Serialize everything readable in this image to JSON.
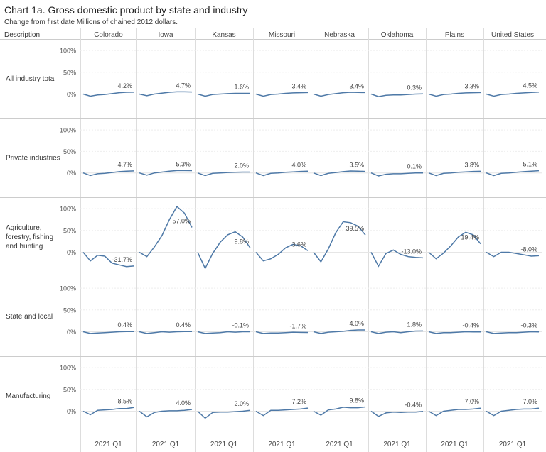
{
  "title": "Chart 1a. Gross domestic product by state and industry",
  "subtitle": "Change from first date Millions of chained 2012 dollars.",
  "header": {
    "description_label": "Description"
  },
  "chart_data": {
    "type": "line",
    "title": "Chart 1a. Gross domestic product by state and industry",
    "columns": [
      "Colorado",
      "Iowa",
      "Kansas",
      "Missouri",
      "Nebraska",
      "Oklahoma",
      "Plains",
      "United States"
    ],
    "x_tick_label": "2021 Q1",
    "y_ticks": [
      "100%",
      "50%",
      "0%"
    ],
    "ylim": [
      -40,
      110
    ],
    "grid": true,
    "line_color": "#4e79a7",
    "rows": [
      {
        "label": "All industry total",
        "series": [
          {
            "state": "Colorado",
            "values": [
              0,
              -5,
              -2,
              -1,
              1,
              3,
              4,
              4.2
            ],
            "last_label": "4.2%"
          },
          {
            "state": "Iowa",
            "values": [
              0,
              -4,
              0,
              2,
              4,
              5,
              5,
              4.7
            ],
            "last_label": "4.7%"
          },
          {
            "state": "Kansas",
            "values": [
              0,
              -5,
              -1,
              0,
              1,
              1.5,
              1.6,
              1.6
            ],
            "last_label": "1.6%"
          },
          {
            "state": "Missouri",
            "values": [
              0,
              -5,
              -1,
              0,
              1.5,
              2.5,
              3,
              3.4
            ],
            "last_label": "3.4%"
          },
          {
            "state": "Nebraska",
            "values": [
              0,
              -5,
              -1,
              1,
              3,
              4,
              3.5,
              3.4
            ],
            "last_label": "3.4%"
          },
          {
            "state": "Oklahoma",
            "values": [
              0,
              -6,
              -3,
              -2,
              -2,
              -1,
              0,
              0.3
            ],
            "last_label": "0.3%"
          },
          {
            "state": "Plains",
            "values": [
              0,
              -5,
              -1,
              0,
              1.5,
              2.5,
              3,
              3.3
            ],
            "last_label": "3.3%"
          },
          {
            "state": "United States",
            "values": [
              0,
              -5,
              -1,
              0,
              1.5,
              2.5,
              3.5,
              4.5
            ],
            "last_label": "4.5%"
          }
        ]
      },
      {
        "label": "Private industries",
        "series": [
          {
            "state": "Colorado",
            "values": [
              0,
              -6,
              -2,
              -1,
              1,
              3,
              4,
              4.7
            ],
            "last_label": "4.7%"
          },
          {
            "state": "Iowa",
            "values": [
              0,
              -5,
              0,
              2,
              4,
              5.5,
              5.5,
              5.3
            ],
            "last_label": "5.3%"
          },
          {
            "state": "Kansas",
            "values": [
              0,
              -6,
              -1,
              0,
              1,
              1.5,
              2,
              2.0
            ],
            "last_label": "2.0%"
          },
          {
            "state": "Missouri",
            "values": [
              0,
              -6,
              -1,
              0,
              1.5,
              2.5,
              3.5,
              4.0
            ],
            "last_label": "4.0%"
          },
          {
            "state": "Nebraska",
            "values": [
              0,
              -6,
              -1,
              1,
              3,
              4.5,
              4,
              3.5
            ],
            "last_label": "3.5%"
          },
          {
            "state": "Oklahoma",
            "values": [
              0,
              -7,
              -3,
              -2,
              -2,
              -1,
              0,
              0.1
            ],
            "last_label": "0.1%"
          },
          {
            "state": "Plains",
            "values": [
              0,
              -6,
              -1,
              0,
              1.5,
              2.5,
              3.5,
              3.8
            ],
            "last_label": "3.8%"
          },
          {
            "state": "United States",
            "values": [
              0,
              -6,
              -1,
              0,
              1.5,
              3,
              4,
              5.1
            ],
            "last_label": "5.1%"
          }
        ]
      },
      {
        "label": "Agriculture, forestry, fishing and hunting",
        "series": [
          {
            "state": "Colorado",
            "values": [
              0,
              -20,
              -7,
              -9,
              -25,
              -29,
              -33,
              -31.7
            ],
            "last_label": "-31.7%"
          },
          {
            "state": "Iowa",
            "values": [
              0,
              -10,
              12,
              38,
              75,
              105,
              90,
              57.0
            ],
            "last_label": "57.0%"
          },
          {
            "state": "Kansas",
            "values": [
              0,
              -37,
              -3,
              23,
              40,
              47,
              35,
              9.8
            ],
            "last_label": "9.8%"
          },
          {
            "state": "Missouri",
            "values": [
              0,
              -20,
              -15,
              -5,
              10,
              18,
              15,
              3.6
            ],
            "last_label": "3.6%"
          },
          {
            "state": "Nebraska",
            "values": [
              0,
              -22,
              8,
              45,
              70,
              68,
              60,
              39.5
            ],
            "last_label": "39.5%"
          },
          {
            "state": "Oklahoma",
            "values": [
              0,
              -32,
              -3,
              5,
              -5,
              -10,
              -12,
              -13.0
            ],
            "last_label": "-13.0%"
          },
          {
            "state": "Plains",
            "values": [
              0,
              -15,
              -2,
              15,
              35,
              46,
              40,
              19.4
            ],
            "last_label": "19.4%"
          },
          {
            "state": "United States",
            "values": [
              0,
              -10,
              0,
              0,
              -3,
              -6,
              -9,
              -8.0
            ],
            "last_label": "-8.0%"
          }
        ]
      },
      {
        "label": "State and local",
        "series": [
          {
            "state": "Colorado",
            "values": [
              0,
              -4,
              -3,
              -2,
              -1,
              0,
              0.5,
              0.4
            ],
            "last_label": "0.4%"
          },
          {
            "state": "Iowa",
            "values": [
              0,
              -4,
              -2,
              0,
              -1,
              0,
              0.5,
              0.4
            ],
            "last_label": "0.4%"
          },
          {
            "state": "Kansas",
            "values": [
              0,
              -4,
              -3,
              -2,
              0,
              -1,
              0,
              -0.1
            ],
            "last_label": "-0.1%"
          },
          {
            "state": "Missouri",
            "values": [
              0,
              -4,
              -3,
              -3,
              -2,
              -1,
              -1.5,
              -1.7
            ],
            "last_label": "-1.7%"
          },
          {
            "state": "Nebraska",
            "values": [
              0,
              -4,
              -1,
              0,
              1,
              3,
              4,
              4.0
            ],
            "last_label": "4.0%"
          },
          {
            "state": "Oklahoma",
            "values": [
              0,
              -4,
              -1,
              0,
              -2,
              0,
              1.5,
              1.8
            ],
            "last_label": "1.8%"
          },
          {
            "state": "Plains",
            "values": [
              0,
              -4,
              -2,
              -2,
              -1,
              0,
              -0.5,
              -0.4
            ],
            "last_label": "-0.4%"
          },
          {
            "state": "United States",
            "values": [
              0,
              -4,
              -3,
              -2,
              -2,
              -1,
              0,
              -0.3
            ],
            "last_label": "-0.3%"
          }
        ]
      },
      {
        "label": "Manufacturing",
        "series": [
          {
            "state": "Colorado",
            "values": [
              0,
              -8,
              2,
              3,
              4,
              6,
              6,
              8.5
            ],
            "last_label": "8.5%"
          },
          {
            "state": "Iowa",
            "values": [
              0,
              -13,
              -3,
              0,
              1,
              1,
              2,
              4.0
            ],
            "last_label": "4.0%"
          },
          {
            "state": "Kansas",
            "values": [
              0,
              -16,
              -3,
              -2,
              -2,
              -1,
              0,
              2.0
            ],
            "last_label": "2.0%"
          },
          {
            "state": "Missouri",
            "values": [
              0,
              -10,
              2,
              2,
              3,
              4,
              5,
              7.2
            ],
            "last_label": "7.2%"
          },
          {
            "state": "Nebraska",
            "values": [
              0,
              -9,
              3,
              5,
              9,
              8,
              8,
              9.8
            ],
            "last_label": "9.8%"
          },
          {
            "state": "Oklahoma",
            "values": [
              0,
              -12,
              -4,
              -2,
              -3,
              -2,
              -2,
              -0.4
            ],
            "last_label": "-0.4%"
          },
          {
            "state": "Plains",
            "values": [
              0,
              -10,
              0,
              2,
              4,
              4,
              5,
              7.0
            ],
            "last_label": "7.0%"
          },
          {
            "state": "United States",
            "values": [
              0,
              -10,
              0,
              2,
              4,
              5,
              5,
              7.0
            ],
            "last_label": "7.0%"
          }
        ]
      }
    ]
  }
}
